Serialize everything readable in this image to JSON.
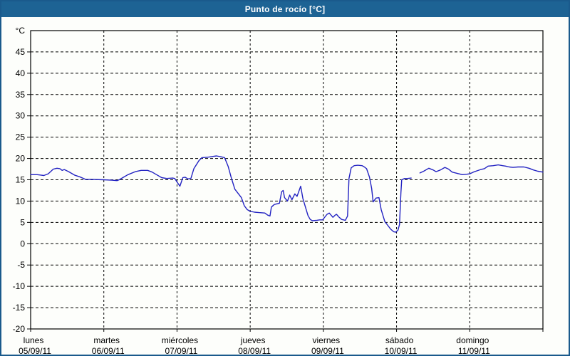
{
  "window": {
    "title": "Punto de rocío [°C]"
  },
  "colors": {
    "frame_border": "#1a5a8c",
    "title_bar_bg": "#1d6394",
    "title_text": "#ffffff",
    "background": "#fdfefb",
    "plot_border": "#000000",
    "grid": "#000000",
    "axis_text": "#000000",
    "line": "#2222c2"
  },
  "chart_data": {
    "type": "line",
    "title": "Punto de rocío [°C]",
    "y_unit_label": "°C",
    "ylim": [
      -20,
      50
    ],
    "y_ticks": [
      45,
      40,
      35,
      30,
      25,
      20,
      15,
      10,
      5,
      0,
      -5,
      -10,
      -15,
      -20
    ],
    "grid": "dashed",
    "legend": "none",
    "x_axis": {
      "unit": "days",
      "range_days": [
        0,
        7
      ],
      "day_ticks": [
        {
          "t": 0,
          "name": "lunes",
          "date": "05/09/11"
        },
        {
          "t": 1,
          "name": "martes",
          "date": "06/09/11"
        },
        {
          "t": 2,
          "name": "miércoles",
          "date": "07/09/11"
        },
        {
          "t": 3,
          "name": "jueves",
          "date": "08/09/11"
        },
        {
          "t": 4,
          "name": "viernes",
          "date": "09/09/11"
        },
        {
          "t": 5,
          "name": "sábado",
          "date": "10/09/11"
        },
        {
          "t": 6,
          "name": "domingo",
          "date": "11/09/11"
        }
      ]
    },
    "series": [
      {
        "name": "Punto de rocío",
        "color": "#2222c2",
        "segments": [
          [
            [
              0.0,
              16.2
            ],
            [
              0.09,
              16.2
            ],
            [
              0.14,
              16.1
            ],
            [
              0.18,
              16.0
            ],
            [
              0.24,
              16.4
            ],
            [
              0.31,
              17.5
            ],
            [
              0.36,
              17.7
            ],
            [
              0.4,
              17.6
            ],
            [
              0.43,
              17.2
            ],
            [
              0.46,
              17.4
            ],
            [
              0.52,
              16.9
            ],
            [
              0.6,
              16.1
            ],
            [
              0.67,
              15.7
            ],
            [
              0.75,
              15.1
            ],
            [
              0.83,
              15.1
            ],
            [
              1.0,
              15.0
            ],
            [
              1.11,
              14.9
            ],
            [
              1.18,
              14.8
            ],
            [
              1.21,
              15.0
            ],
            [
              1.27,
              15.6
            ],
            [
              1.33,
              16.2
            ],
            [
              1.43,
              16.9
            ],
            [
              1.51,
              17.2
            ],
            [
              1.6,
              17.2
            ],
            [
              1.66,
              16.8
            ],
            [
              1.72,
              16.2
            ],
            [
              1.79,
              15.5
            ],
            [
              1.86,
              15.3
            ],
            [
              1.94,
              15.4
            ],
            [
              1.97,
              15.3
            ],
            [
              2.0,
              14.5
            ],
            [
              2.04,
              13.5
            ],
            [
              2.08,
              15.5
            ],
            [
              2.11,
              15.6
            ],
            [
              2.15,
              15.2
            ],
            [
              2.19,
              15.3
            ],
            [
              2.23,
              17.6
            ],
            [
              2.3,
              19.5
            ],
            [
              2.34,
              20.2
            ],
            [
              2.42,
              20.3
            ],
            [
              2.5,
              20.5
            ],
            [
              2.54,
              20.6
            ],
            [
              2.6,
              20.4
            ],
            [
              2.65,
              20.2
            ],
            [
              2.7,
              18.1
            ],
            [
              2.74,
              15.6
            ],
            [
              2.79,
              12.8
            ],
            [
              2.88,
              10.8
            ],
            [
              2.92,
              8.9
            ],
            [
              2.96,
              8.0
            ],
            [
              3.0,
              7.6
            ],
            [
              3.06,
              7.4
            ],
            [
              3.12,
              7.3
            ],
            [
              3.2,
              7.2
            ],
            [
              3.24,
              6.7
            ],
            [
              3.27,
              6.5
            ],
            [
              3.29,
              8.6
            ],
            [
              3.33,
              9.2
            ],
            [
              3.4,
              9.5
            ],
            [
              3.43,
              12.2
            ],
            [
              3.45,
              12.5
            ],
            [
              3.47,
              10.8
            ],
            [
              3.51,
              10.0
            ],
            [
              3.54,
              11.4
            ],
            [
              3.57,
              10.3
            ],
            [
              3.61,
              11.7
            ],
            [
              3.64,
              11.1
            ],
            [
              3.69,
              13.5
            ],
            [
              3.72,
              10.6
            ],
            [
              3.76,
              8.3
            ],
            [
              3.79,
              6.6
            ],
            [
              3.82,
              5.7
            ],
            [
              3.85,
              5.4
            ],
            [
              3.91,
              5.5
            ],
            [
              3.95,
              5.6
            ],
            [
              3.99,
              5.6
            ],
            [
              4.05,
              6.9
            ],
            [
              4.08,
              7.2
            ],
            [
              4.11,
              6.6
            ],
            [
              4.13,
              6.2
            ],
            [
              4.16,
              6.7
            ],
            [
              4.18,
              6.9
            ],
            [
              4.21,
              6.3
            ],
            [
              4.25,
              5.7
            ],
            [
              4.3,
              5.5
            ],
            [
              4.33,
              6.5
            ],
            [
              4.35,
              15.3
            ],
            [
              4.38,
              17.8
            ],
            [
              4.42,
              18.3
            ],
            [
              4.47,
              18.4
            ],
            [
              4.53,
              18.3
            ],
            [
              4.56,
              18.0
            ],
            [
              4.59,
              17.6
            ],
            [
              4.63,
              15.6
            ],
            [
              4.66,
              13.0
            ],
            [
              4.68,
              9.8
            ],
            [
              4.72,
              10.7
            ],
            [
              4.76,
              10.8
            ],
            [
              4.79,
              8.0
            ],
            [
              4.84,
              5.2
            ],
            [
              4.88,
              4.3
            ],
            [
              4.92,
              3.4
            ],
            [
              4.96,
              2.8
            ],
            [
              4.99,
              2.7
            ],
            [
              5.02,
              3.2
            ],
            [
              5.04,
              4.5
            ],
            [
              5.06,
              12.0
            ],
            [
              5.07,
              15.0
            ],
            [
              5.11,
              15.3
            ],
            [
              5.15,
              15.3
            ],
            [
              5.2,
              15.4
            ]
          ],
          [
            [
              5.32,
              16.6
            ],
            [
              5.37,
              17.0
            ],
            [
              5.44,
              17.7
            ],
            [
              5.5,
              17.3
            ],
            [
              5.54,
              16.9
            ],
            [
              5.6,
              17.3
            ],
            [
              5.66,
              17.9
            ],
            [
              5.71,
              17.5
            ],
            [
              5.76,
              16.8
            ],
            [
              5.85,
              16.4
            ],
            [
              5.9,
              16.2
            ],
            [
              5.96,
              16.3
            ],
            [
              6.0,
              16.4
            ],
            [
              6.05,
              16.8
            ],
            [
              6.1,
              17.1
            ],
            [
              6.15,
              17.4
            ],
            [
              6.2,
              17.6
            ],
            [
              6.25,
              18.2
            ],
            [
              6.32,
              18.3
            ],
            [
              6.39,
              18.5
            ],
            [
              6.45,
              18.3
            ],
            [
              6.49,
              18.2
            ],
            [
              6.54,
              18.0
            ],
            [
              6.59,
              17.9
            ],
            [
              6.66,
              18.0
            ],
            [
              6.74,
              18.0
            ],
            [
              6.81,
              17.7
            ],
            [
              6.87,
              17.3
            ],
            [
              6.93,
              17.0
            ],
            [
              7.0,
              16.8
            ]
          ]
        ]
      }
    ]
  }
}
